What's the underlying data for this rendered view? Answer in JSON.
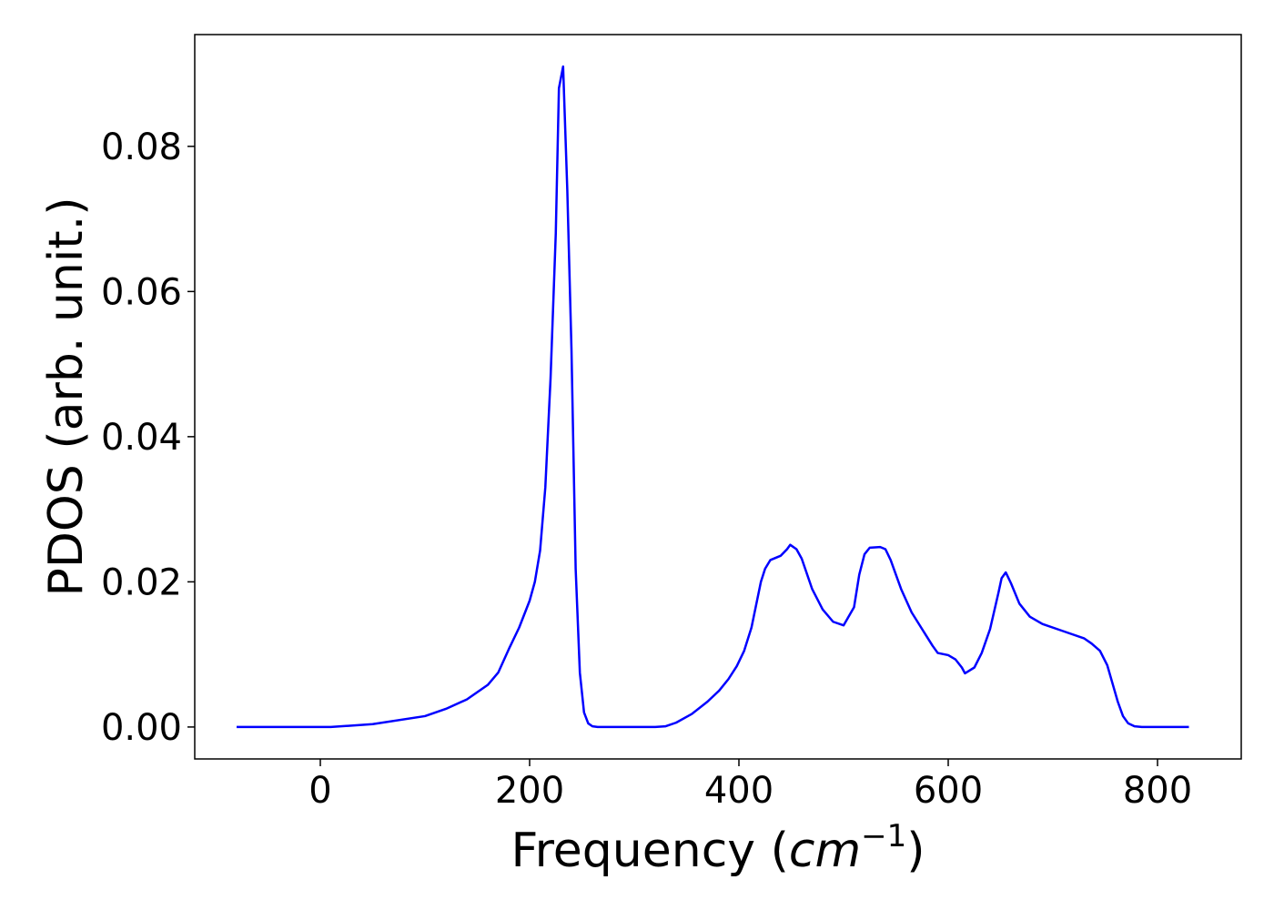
{
  "chart_data": {
    "type": "line",
    "xlabel": [
      "Frequency (",
      "cm",
      "−1",
      ")"
    ],
    "ylabel": "PDOS (arb. unit.)",
    "xlim": [
      -120,
      880
    ],
    "ylim": [
      -0.0044,
      0.0954
    ],
    "xticks": [
      0,
      200,
      400,
      600,
      800
    ],
    "yticks": [
      {
        "value": 0,
        "label": "0.00"
      },
      {
        "value": 0.02,
        "label": "0.02"
      },
      {
        "value": 0.04,
        "label": "0.04"
      },
      {
        "value": 0.06,
        "label": "0.06"
      },
      {
        "value": 0.08,
        "label": "0.08"
      }
    ],
    "color": "#0000ff",
    "x": [
      -80,
      0,
      10,
      50,
      100,
      120,
      140,
      160,
      170,
      181,
      190,
      200,
      205,
      210,
      215,
      220,
      225,
      228,
      232,
      236,
      240,
      244,
      248,
      252,
      256,
      260,
      265,
      320,
      330,
      340,
      355,
      370,
      381,
      390,
      398,
      405,
      412,
      421,
      425,
      430,
      440,
      446,
      449,
      455,
      460,
      470,
      480,
      490,
      500,
      510,
      515,
      520,
      525,
      535,
      540,
      545,
      555,
      565,
      575,
      585,
      590,
      600,
      607,
      613,
      616,
      625,
      632,
      640,
      648,
      651,
      655,
      660,
      668,
      678,
      690,
      710,
      730,
      737,
      745,
      752,
      757,
      762,
      767,
      772,
      778,
      785,
      830
    ],
    "y": [
      0,
      0,
      0,
      0.0004,
      0.0015,
      0.0025,
      0.0038,
      0.0058,
      0.0075,
      0.011,
      0.0137,
      0.0174,
      0.02,
      0.0243,
      0.033,
      0.048,
      0.068,
      0.088,
      0.091,
      0.074,
      0.052,
      0.0218,
      0.0075,
      0.002,
      0.0005,
      0.0001,
      0,
      0,
      0.0001,
      0.0006,
      0.0018,
      0.0035,
      0.005,
      0.0066,
      0.0084,
      0.0105,
      0.0137,
      0.02,
      0.0218,
      0.023,
      0.0236,
      0.0245,
      0.0251,
      0.0245,
      0.0232,
      0.019,
      0.0162,
      0.0145,
      0.014,
      0.0165,
      0.021,
      0.0238,
      0.0247,
      0.0248,
      0.0245,
      0.023,
      0.019,
      0.0158,
      0.0135,
      0.0112,
      0.0102,
      0.0099,
      0.0093,
      0.0082,
      0.0074,
      0.0082,
      0.0102,
      0.0135,
      0.0185,
      0.0205,
      0.0213,
      0.0198,
      0.017,
      0.0152,
      0.0142,
      0.0132,
      0.0122,
      0.0115,
      0.0105,
      0.0085,
      0.006,
      0.0035,
      0.0015,
      0.0005,
      0.0001,
      0,
      0
    ]
  }
}
